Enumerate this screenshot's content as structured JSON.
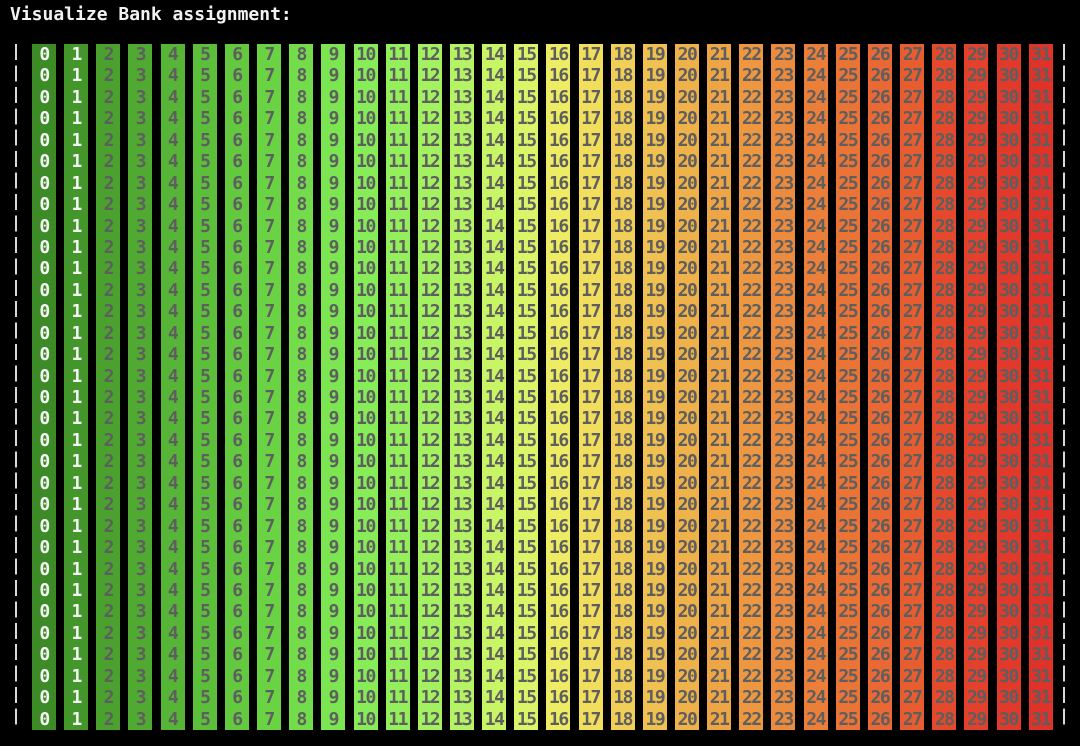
{
  "terminal": {
    "title": "Visualize Bank assignment:",
    "row_count": 32,
    "banks": [
      {
        "label": "0",
        "bg": "#3d8b26",
        "fg": "#f4f4f4"
      },
      {
        "label": "1",
        "bg": "#43962a",
        "fg": "#f4f4f4"
      },
      {
        "label": "2",
        "bg": "#4aa12e",
        "fg": "#5e5e5e"
      },
      {
        "label": "3",
        "bg": "#50aa32",
        "fg": "#5e5e5e"
      },
      {
        "label": "4",
        "bg": "#56b436",
        "fg": "#5e5e5e"
      },
      {
        "label": "5",
        "bg": "#5cbf3a",
        "fg": "#5e5e5e"
      },
      {
        "label": "6",
        "bg": "#63c93f",
        "fg": "#5e5e5e"
      },
      {
        "label": "7",
        "bg": "#6ad344",
        "fg": "#5e5e5e"
      },
      {
        "label": "8",
        "bg": "#72dc4b",
        "fg": "#5e5e5e"
      },
      {
        "label": "9",
        "bg": "#7be552",
        "fg": "#5e5e5e"
      },
      {
        "label": "10",
        "bg": "#86ec58",
        "fg": "#5e5e5e"
      },
      {
        "label": "11",
        "bg": "#94ef5c",
        "fg": "#5e5e5e"
      },
      {
        "label": "12",
        "bg": "#a3f160",
        "fg": "#5e5e5e"
      },
      {
        "label": "13",
        "bg": "#b4f464",
        "fg": "#5e5e5e"
      },
      {
        "label": "14",
        "bg": "#c8f566",
        "fg": "#5e5e5e"
      },
      {
        "label": "15",
        "bg": "#dbf568",
        "fg": "#5e5e5e"
      },
      {
        "label": "16",
        "bg": "#edec64",
        "fg": "#5e5e5e"
      },
      {
        "label": "17",
        "bg": "#f2de5d",
        "fg": "#5e5e5e"
      },
      {
        "label": "18",
        "bg": "#f1cf56",
        "fg": "#5e5e5e"
      },
      {
        "label": "19",
        "bg": "#f0c050",
        "fg": "#5e5e5e"
      },
      {
        "label": "20",
        "bg": "#efb24a",
        "fg": "#5e5e5e"
      },
      {
        "label": "21",
        "bg": "#eea545",
        "fg": "#5e5e5e"
      },
      {
        "label": "22",
        "bg": "#ed9841",
        "fg": "#5e5e5e"
      },
      {
        "label": "23",
        "bg": "#ec8b3d",
        "fg": "#5e5e5e"
      },
      {
        "label": "24",
        "bg": "#eb7f39",
        "fg": "#5e5e5e"
      },
      {
        "label": "25",
        "bg": "#ea7336",
        "fg": "#5e5e5e"
      },
      {
        "label": "26",
        "bg": "#e96833",
        "fg": "#5e5e5e"
      },
      {
        "label": "27",
        "bg": "#e85d30",
        "fg": "#5e5e5e"
      },
      {
        "label": "28",
        "bg": "#e5492c",
        "fg": "#5e5e5e"
      },
      {
        "label": "29",
        "bg": "#e3412b",
        "fg": "#5e5e5e"
      },
      {
        "label": "30",
        "bg": "#e1392a",
        "fg": "#5e5e5e"
      },
      {
        "label": "31",
        "bg": "#df3229",
        "fg": "#5e5e5e"
      }
    ]
  }
}
